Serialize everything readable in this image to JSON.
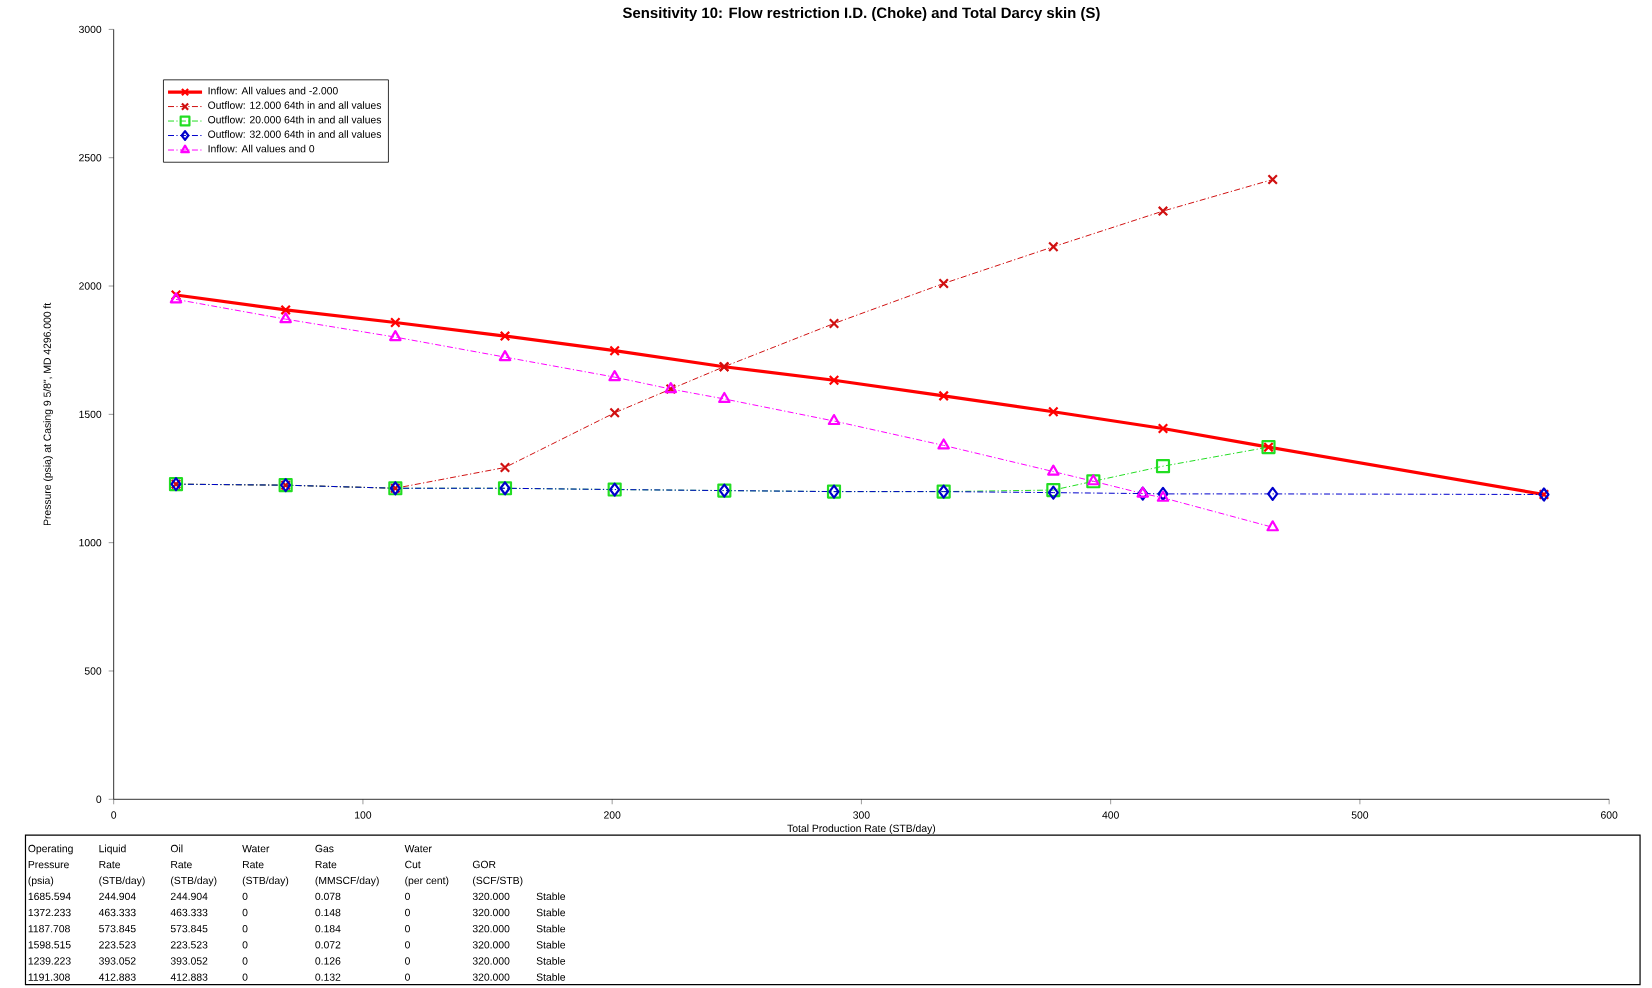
{
  "chart_data": {
    "type": "line",
    "title": "Sensitivity 10: Flow restriction I.D. (Choke) and Total Darcy skin (S)",
    "xlabel": "Total Production Rate (STB/day)",
    "ylabel": "Pressure (psia) at Casing 9 5/8\", MD 4296.000 ft",
    "xlim": [
      0,
      600
    ],
    "xticks": [
      0,
      100,
      200,
      300,
      400,
      500,
      600
    ],
    "ylim": [
      0,
      3000
    ],
    "yticks": [
      0,
      500,
      1000,
      1500,
      2000,
      2500,
      3000
    ],
    "grid": false,
    "legend": "top left",
    "series": [
      {
        "name": "Inflow: All values and -2.000",
        "color": "#ff0000",
        "marker": "cross",
        "line_style": "solid",
        "x": [
          25,
          69,
          113,
          157,
          201,
          244.904,
          289,
          333,
          377,
          421,
          463.333,
          573.845
        ],
        "values": [
          1965,
          1907,
          1858,
          1805,
          1748,
          1685.594,
          1633,
          1572,
          1510,
          1445,
          1372.233,
          1187.708
        ]
      },
      {
        "name": "Outflow: 12.000 64th in and all values",
        "color": "#d01010",
        "marker": "cross",
        "line_style": "dashed",
        "x": [
          25,
          69,
          113,
          157,
          201,
          223.523,
          244.904,
          289,
          333,
          377,
          421,
          465
        ],
        "values": [
          1228,
          1224,
          1212,
          1293,
          1506,
          1598.515,
          1685.594,
          1854,
          2010,
          2153,
          2292,
          2415
        ]
      },
      {
        "name": "Outflow: 20.000 64th in and all values",
        "color": "#22dd22",
        "marker": "square",
        "line_style": "dashed",
        "x": [
          25,
          69,
          113,
          157,
          201,
          245,
          289,
          333,
          377,
          393.052,
          421,
          463.333
        ],
        "values": [
          1228,
          1224,
          1212,
          1212,
          1207,
          1203,
          1199,
          1199,
          1205,
          1239.223,
          1298,
          1372.233
        ]
      },
      {
        "name": "Outflow: 32.000 64th in and all values",
        "color": "#0000cc",
        "marker": "diamond",
        "line_style": "dashed",
        "x": [
          25,
          69,
          113,
          157,
          201,
          245,
          289,
          333,
          377,
          412.883,
          421,
          465,
          573.845
        ],
        "values": [
          1228,
          1224,
          1212,
          1212,
          1207,
          1203,
          1199,
          1199,
          1195,
          1191.308,
          1190,
          1190,
          1187.708
        ]
      },
      {
        "name": "Inflow: All values and 0",
        "color": "#ff00ff",
        "marker": "triangle",
        "line_style": "dashed",
        "x": [
          25,
          69,
          113,
          157,
          201,
          223.523,
          245,
          289,
          333,
          377,
          393.052,
          412.883,
          421,
          465
        ],
        "values": [
          1948,
          1871,
          1801,
          1723,
          1645,
          1598.515,
          1560,
          1474,
          1379,
          1277,
          1239.223,
          1191.308,
          1175,
          1060
        ]
      }
    ],
    "annotations": [
      "Operating",
      "Pressure",
      "(psia)",
      "Liquid",
      "Rate",
      "(STB/day)",
      "Oil",
      "Rate",
      "(STB/day)",
      "Water",
      "Rate",
      "(STB/day)",
      "Gas",
      "Rate",
      "(MMSCF/day)",
      "Water",
      "Cut",
      "(per cent)",
      "GOR",
      "(SCF/STB)",
      "1685.594",
      "244.904",
      "244.904",
      "0",
      "0.078",
      "0",
      "320.000",
      "Stable",
      "1372.233",
      "463.333",
      "463.333",
      "0",
      "0.148",
      "0",
      "320.000",
      "Stable",
      "1187.708",
      "573.845",
      "573.845",
      "0",
      "0.184",
      "0",
      "320.000",
      "Stable",
      "1598.515",
      "223.523",
      "223.523",
      "0",
      "0.072",
      "0",
      "320.000",
      "Stable",
      "1239.223",
      "393.052",
      "393.052",
      "0",
      "0.126",
      "0",
      "320.000",
      "Stable",
      "1191.308",
      "412.883",
      "412.883",
      "0",
      "0.132",
      "0",
      "320.000",
      "Stable"
    ]
  }
}
